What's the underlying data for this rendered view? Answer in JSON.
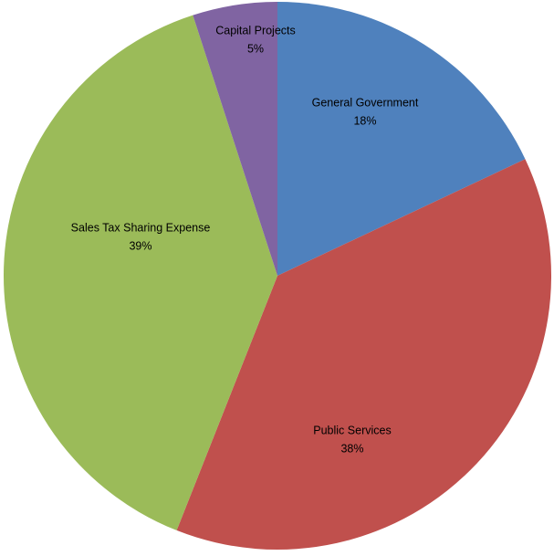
{
  "chart_data": {
    "type": "pie",
    "categories": [
      "General Government",
      "Public Services",
      "Sales Tax Sharing Expense",
      "Capital Projects"
    ],
    "values": [
      18,
      38,
      39,
      5
    ],
    "value_labels": [
      "18%",
      "38%",
      "39%",
      "5%"
    ],
    "colors": [
      "#4f81bd",
      "#c0504d",
      "#9bbb59",
      "#8064a2"
    ]
  }
}
